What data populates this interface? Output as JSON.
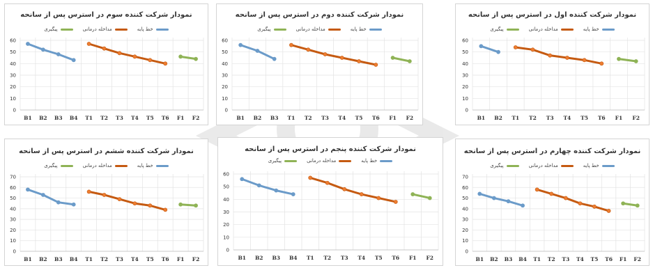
{
  "colors": {
    "baseline": "#6b9bc9",
    "treatment": "#c55a11",
    "treatment_marker": "#ed7d31",
    "followup": "#8fb356",
    "grid": "#e3e3e3",
    "axis_text": "#333333"
  },
  "legend": {
    "baseline": "خط پایه",
    "treatment": "مداخله درمانی",
    "followup": "پیگیری"
  },
  "chart_data": [
    {
      "type": "line",
      "title": "نمودار شرکت کننده سوم در استرس پس از سانحه",
      "categories": [
        "B1",
        "B2",
        "B3",
        "B4",
        "T1",
        "T2",
        "T3",
        "T4",
        "T5",
        "T6",
        "F1",
        "F2"
      ],
      "yticks": [
        "0",
        "10",
        "20",
        "30",
        "40",
        "50",
        "60"
      ],
      "ylim": [
        0,
        60
      ],
      "series": [
        {
          "name": "خط پایه",
          "x": [
            "B1",
            "B2",
            "B3",
            "B4"
          ],
          "values": [
            57,
            52,
            48,
            43
          ]
        },
        {
          "name": "مداخله درمانی",
          "x": [
            "T1",
            "T2",
            "T3",
            "T4",
            "T5",
            "T6"
          ],
          "values": [
            57,
            53,
            49,
            46,
            43,
            40
          ]
        },
        {
          "name": "پیگیری",
          "x": [
            "F1",
            "F2"
          ],
          "values": [
            46,
            44
          ]
        }
      ]
    },
    {
      "type": "line",
      "title": "نمودار شرکت کننده دوم در استرس پس از سانحه",
      "categories": [
        "B1",
        "B2",
        "B3",
        "T1",
        "T2",
        "T3",
        "T4",
        "T5",
        "T6",
        "F1",
        "F2"
      ],
      "yticks": [
        "0",
        "10",
        "20",
        "30",
        "40",
        "50",
        "60"
      ],
      "ylim": [
        0,
        60
      ],
      "series": [
        {
          "name": "خط پایه",
          "x": [
            "B1",
            "B2",
            "B3"
          ],
          "values": [
            56,
            51,
            44
          ]
        },
        {
          "name": "مداخله درمانی",
          "x": [
            "T1",
            "T2",
            "T3",
            "T4",
            "T5",
            "T6"
          ],
          "values": [
            56,
            52,
            48,
            45,
            42,
            39
          ]
        },
        {
          "name": "پیگیری",
          "x": [
            "F1",
            "F2"
          ],
          "values": [
            45,
            42
          ]
        }
      ]
    },
    {
      "type": "line",
      "title": "نمودار شرکت کننده اول در استرس پس از سانحه",
      "categories": [
        "B1",
        "B2",
        "T1",
        "T2",
        "T3",
        "T4",
        "T5",
        "T6",
        "F1",
        "F2"
      ],
      "yticks": [
        "0",
        "10",
        "20",
        "30",
        "40",
        "50",
        "60"
      ],
      "ylim": [
        0,
        60
      ],
      "series": [
        {
          "name": "خط پایه",
          "x": [
            "B1",
            "B2"
          ],
          "values": [
            55,
            50
          ]
        },
        {
          "name": "مداخله درمانی",
          "x": [
            "T1",
            "T2",
            "T3",
            "T4",
            "T5",
            "T6"
          ],
          "values": [
            54,
            52,
            47,
            45,
            43,
            40
          ]
        },
        {
          "name": "پیگیری",
          "x": [
            "F1",
            "F2"
          ],
          "values": [
            44,
            42
          ]
        }
      ]
    },
    {
      "type": "line",
      "title": "نمودار شرکت کننده ششم در استرس پس از سانحه",
      "categories": [
        "B1",
        "B2",
        "B3",
        "B4",
        "T1",
        "T2",
        "T3",
        "T4",
        "T5",
        "T6",
        "F1",
        "F2"
      ],
      "yticks": [
        "0",
        "10",
        "20",
        "30",
        "40",
        "50",
        "60",
        "70"
      ],
      "ylim": [
        0,
        70
      ],
      "series": [
        {
          "name": "خط پایه",
          "x": [
            "B1",
            "B2",
            "B3",
            "B4"
          ],
          "values": [
            58,
            53,
            46,
            44
          ]
        },
        {
          "name": "مداخله درمانی",
          "x": [
            "T1",
            "T2",
            "T3",
            "T4",
            "T5",
            "T6"
          ],
          "values": [
            56,
            53,
            49,
            45,
            43,
            39
          ]
        },
        {
          "name": "پیگیری",
          "x": [
            "F1",
            "F2"
          ],
          "values": [
            44,
            43
          ]
        }
      ]
    },
    {
      "type": "line",
      "title": "نمودار شرکت کننده پنجم در استرس پس از سانحه",
      "categories": [
        "B1",
        "B2",
        "B3",
        "B4",
        "T1",
        "T2",
        "T3",
        "T4",
        "T5",
        "T6",
        "F1",
        "F2"
      ],
      "yticks": [
        "0",
        "10",
        "20",
        "30",
        "40",
        "50",
        "60"
      ],
      "ylim": [
        0,
        60
      ],
      "series": [
        {
          "name": "خط پایه",
          "x": [
            "B1",
            "B2",
            "B3",
            "B4"
          ],
          "values": [
            56,
            51,
            47,
            44
          ]
        },
        {
          "name": "مداخله درمانی",
          "x": [
            "T1",
            "T2",
            "T3",
            "T4",
            "T5",
            "T6"
          ],
          "values": [
            57,
            53,
            48,
            44,
            41,
            38
          ]
        },
        {
          "name": "پیگیری",
          "x": [
            "F1",
            "F2"
          ],
          "values": [
            44,
            41
          ]
        }
      ]
    },
    {
      "type": "line",
      "title": "نمودار شرکت کننده چهارم در استرس پس از سانحه",
      "categories": [
        "B1",
        "B2",
        "B3",
        "B4",
        "T1",
        "T2",
        "T3",
        "T4",
        "T5",
        "T6",
        "F1",
        "F2"
      ],
      "yticks": [
        "0",
        "10",
        "20",
        "30",
        "40",
        "50",
        "60",
        "70"
      ],
      "ylim": [
        0,
        70
      ],
      "series": [
        {
          "name": "خط پایه",
          "x": [
            "B1",
            "B2",
            "B3",
            "B4"
          ],
          "values": [
            54,
            50,
            47,
            43
          ]
        },
        {
          "name": "مداخله درمانی",
          "x": [
            "T1",
            "T2",
            "T3",
            "T4",
            "T5",
            "T6"
          ],
          "values": [
            58,
            54,
            50,
            45,
            42,
            38
          ]
        },
        {
          "name": "پیگیری",
          "x": [
            "F1",
            "F2"
          ],
          "values": [
            45,
            43
          ]
        }
      ]
    }
  ]
}
